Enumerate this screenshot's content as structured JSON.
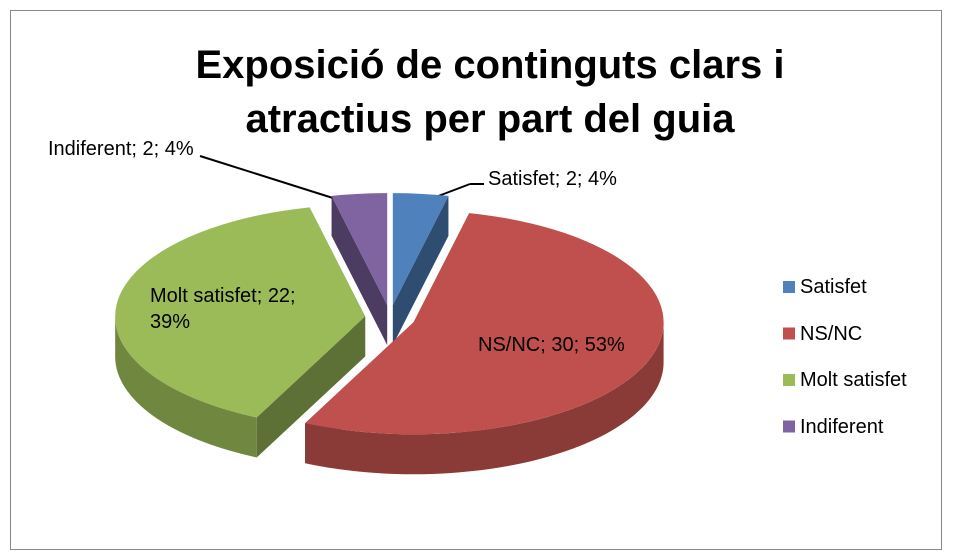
{
  "chart_data": {
    "type": "pie3d",
    "title": "Exposició de continguts clars i atractius per part del guia",
    "categories": [
      "Satisfet",
      "NS/NC",
      "Molt satisfet",
      "Indiferent"
    ],
    "values": [
      2,
      30,
      22,
      2
    ],
    "value_labels": [
      "Satisfet; 2; 4%",
      "NS/NC; 30; 53%",
      "Molt satisfet; 22; 39%",
      "Indiferent; 2; 4%"
    ],
    "colors": [
      "#4f81bd",
      "#c0504d",
      "#9bbb59",
      "#8064a2"
    ],
    "legend": "right"
  }
}
